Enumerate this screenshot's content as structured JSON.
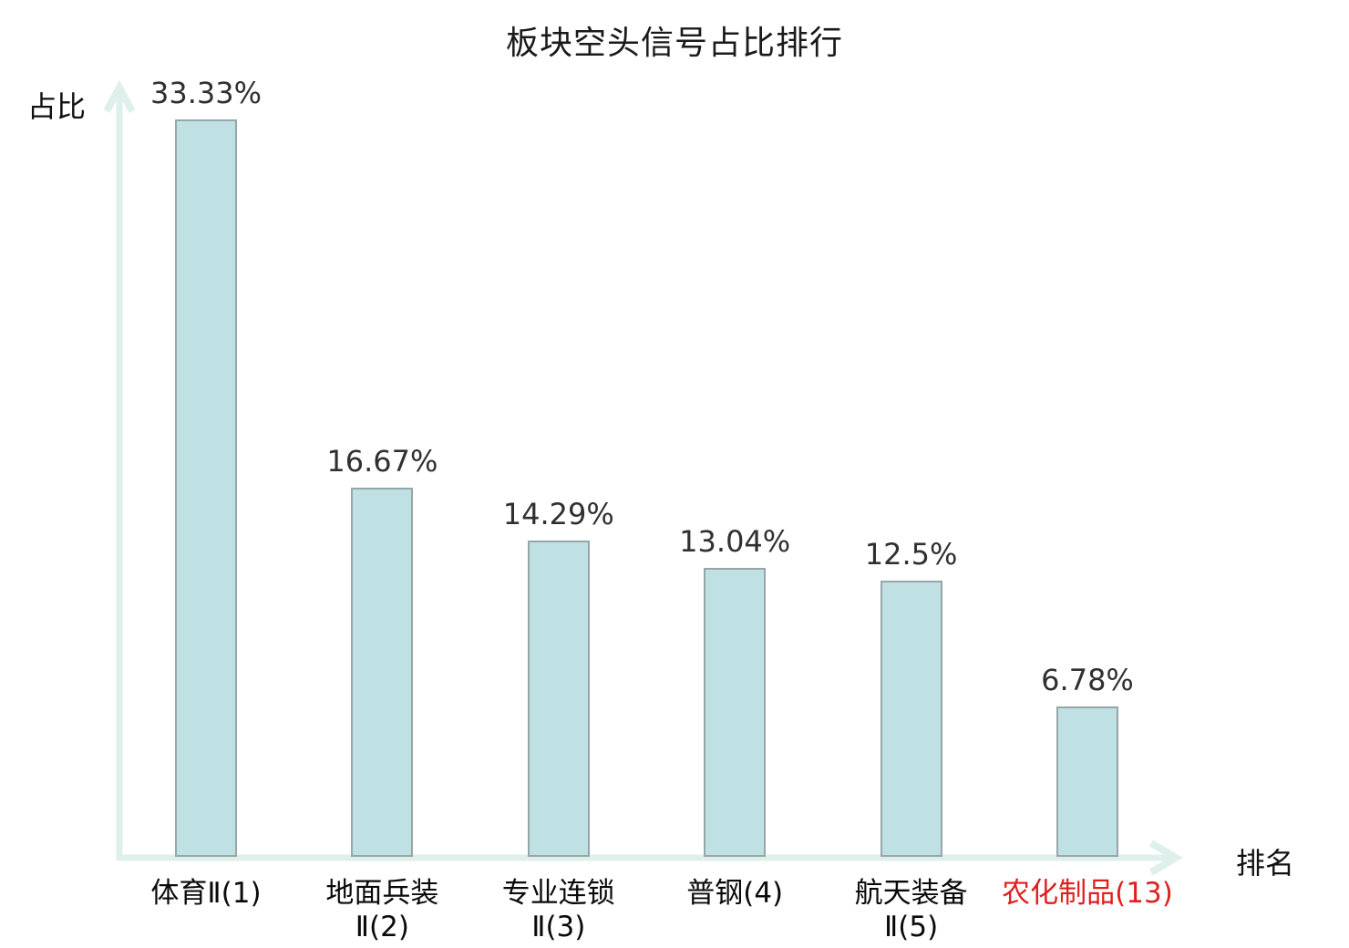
{
  "chart_data": {
    "type": "bar",
    "title": "板块空头信号占比排行",
    "ylabel": "占比",
    "xlabel": "排名",
    "categories": [
      {
        "lines": [
          "体育Ⅱ(1)"
        ],
        "highlight": false
      },
      {
        "lines": [
          "地面兵装",
          "Ⅱ(2)"
        ],
        "highlight": false
      },
      {
        "lines": [
          "专业连锁",
          "Ⅱ(3)"
        ],
        "highlight": false
      },
      {
        "lines": [
          "普钢(4)"
        ],
        "highlight": false
      },
      {
        "lines": [
          "航天装备",
          "Ⅱ(5)"
        ],
        "highlight": false
      },
      {
        "lines": [
          "农化制品(13)"
        ],
        "highlight": true
      }
    ],
    "values": [
      33.33,
      16.67,
      14.29,
      13.04,
      12.5,
      6.78
    ],
    "value_labels": [
      "33.33%",
      "16.67%",
      "14.29%",
      "13.04%",
      "12.5%",
      "6.78%"
    ],
    "ylim": [
      0,
      35
    ],
    "grid": false,
    "legend_position": "none",
    "colors": {
      "bar_fill": "#bfe1e3",
      "bar_border": "#97a6a7",
      "axis": "#dff0ec",
      "value_text": "#303030",
      "category_text": "#0a0a0a",
      "highlight_text": "#e01f1f",
      "title_text": "#1a1a1a"
    }
  }
}
